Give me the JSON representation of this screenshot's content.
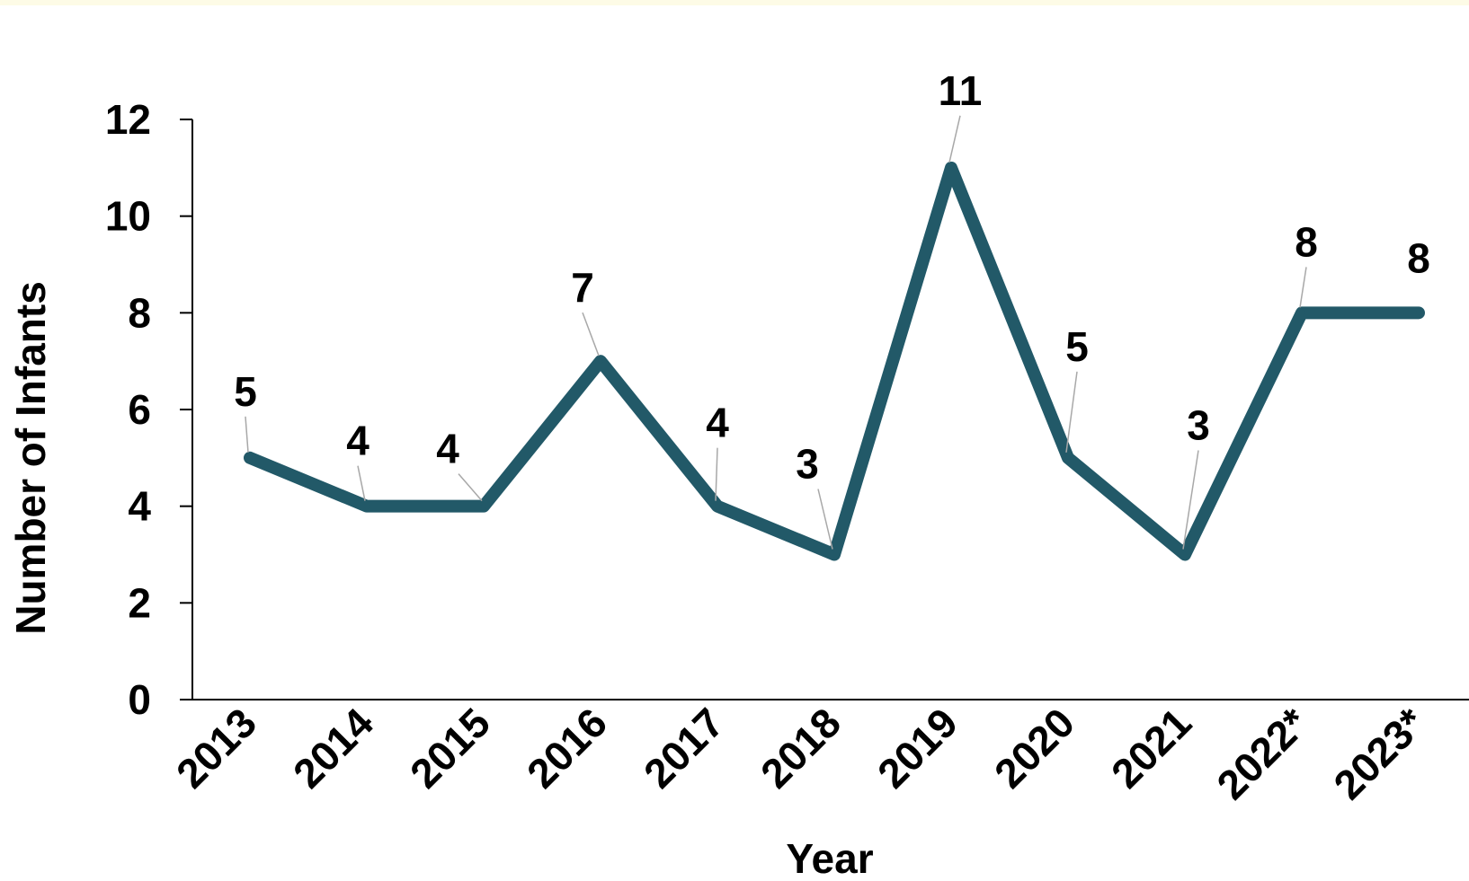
{
  "chart_data": {
    "type": "line",
    "categories": [
      "2013",
      "2014",
      "2015",
      "2016",
      "2017",
      "2018",
      "2019",
      "2020",
      "2021",
      "2022*",
      "2023*"
    ],
    "series": [
      {
        "values": [
          5,
          4,
          4,
          7,
          4,
          3,
          11,
          5,
          3,
          8,
          8
        ],
        "color": "#225968"
      }
    ],
    "data_labels": [
      "5",
      "4",
      "4",
      "7",
      "4",
      "3",
      "11",
      "5",
      "3",
      "8",
      "8"
    ],
    "xlabel": "Year",
    "ylabel": "Number of Infants",
    "ylim": [
      0,
      12
    ],
    "yticks": [
      "0",
      "2",
      "4",
      "6",
      "8",
      "10",
      "12"
    ],
    "grid": false,
    "legend": "none"
  }
}
